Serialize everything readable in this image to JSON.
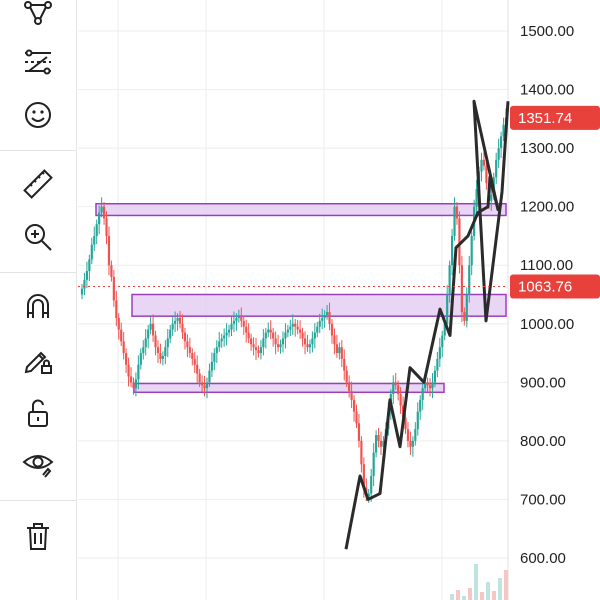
{
  "toolbar": {
    "tools": [
      {
        "name": "pattern-tool-icon"
      },
      {
        "name": "forecast-tool-icon"
      },
      {
        "name": "emoji-tool-icon"
      },
      {
        "name": "ruler-icon"
      },
      {
        "name": "zoom-in-icon"
      },
      {
        "name": "magnet-icon"
      },
      {
        "name": "pencil-lock-icon"
      },
      {
        "name": "lock-icon"
      },
      {
        "name": "eye-icon"
      },
      {
        "name": "trash-icon"
      }
    ]
  },
  "chart_data": {
    "type": "candlestick",
    "y_axis": {
      "ticks": [
        "1500.00",
        "1400.00",
        "1300.00",
        "1200.00",
        "1100.00",
        "1000.00",
        "900.00",
        "800.00",
        "700.00",
        "600.00"
      ],
      "ylim": [
        570,
        1550
      ]
    },
    "price_tags": [
      {
        "label": "1351.74",
        "value": 1351.74,
        "color": "#e8413b"
      },
      {
        "label": "1063.76",
        "value": 1063.76,
        "color": "#e8413b",
        "dotted_line": true
      }
    ],
    "zones": [
      {
        "from": 1185,
        "to": 1205
      },
      {
        "from": 1013,
        "to": 1050
      },
      {
        "from": 883,
        "to": 898
      }
    ],
    "closes": [
      1060,
      1075,
      1090,
      1110,
      1135,
      1150,
      1170,
      1190,
      1200,
      1180,
      1150,
      1100,
      1080,
      1040,
      1010,
      990,
      970,
      950,
      930,
      910,
      900,
      890,
      905,
      930,
      950,
      960,
      975,
      990,
      1000,
      980,
      960,
      950,
      940,
      945,
      960,
      975,
      990,
      1000,
      1005,
      1010,
      1000,
      985,
      970,
      960,
      950,
      940,
      930,
      915,
      900,
      895,
      890,
      900,
      920,
      935,
      950,
      960,
      970,
      975,
      980,
      985,
      990,
      1000,
      1005,
      1010,
      1012,
      1005,
      995,
      985,
      975,
      965,
      960,
      955,
      950,
      960,
      975,
      985,
      990,
      985,
      975,
      965,
      960,
      965,
      975,
      985,
      990,
      995,
      1000,
      995,
      990,
      985,
      975,
      965,
      960,
      965,
      975,
      985,
      995,
      1005,
      1010,
      1015,
      1020,
      1000,
      980,
      965,
      950,
      960,
      940,
      920,
      900,
      885,
      870,
      850,
      830,
      800,
      760,
      720,
      705,
      710,
      740,
      780,
      810,
      800,
      790,
      800,
      820,
      850,
      880,
      900,
      895,
      880,
      860,
      840,
      820,
      800,
      790,
      800,
      820,
      850,
      870,
      890,
      900,
      895,
      890,
      900,
      920,
      940,
      960,
      980,
      1000,
      1050,
      1100,
      1150,
      1200,
      1180,
      1100,
      1020,
      1005,
      1050,
      1100,
      1150,
      1200,
      1230,
      1260,
      1280,
      1270,
      1240,
      1210,
      1220,
      1250,
      1280,
      1300,
      1320,
      1340,
      1352
    ],
    "highs_lows_note": "",
    "trend_lines": [
      [
        [
          650,
          615
        ],
        [
          700,
          740
        ],
        [
          740,
          700
        ],
        [
          790,
          710
        ],
        [
          815,
          870
        ],
        [
          840,
          790
        ],
        [
          870,
          925
        ],
        [
          895,
          900
        ],
        [
          940,
          1025
        ],
        [
          960,
          980
        ],
        [
          1040,
          1130
        ],
        [
          1060,
          1150
        ],
        [
          1120,
          1190
        ],
        [
          1145,
          1200
        ],
        [
          1180,
          1250
        ],
        [
          1200,
          1195
        ],
        [
          1240,
          1380
        ],
        [
          1270,
          1005
        ],
        [
          1300,
          1225
        ],
        [
          1320,
          1380
        ]
      ]
    ],
    "volume_visible": true
  }
}
